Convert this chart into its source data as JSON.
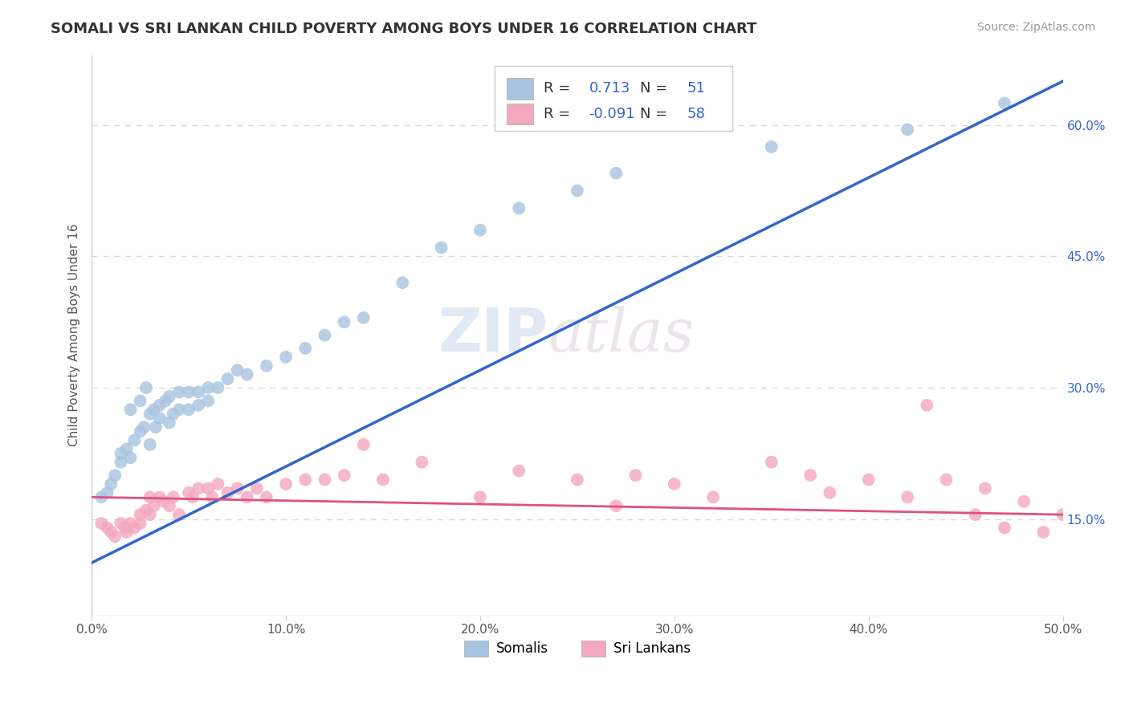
{
  "title": "SOMALI VS SRI LANKAN CHILD POVERTY AMONG BOYS UNDER 16 CORRELATION CHART",
  "source": "Source: ZipAtlas.com",
  "ylabel": "Child Poverty Among Boys Under 16",
  "xlim": [
    0.0,
    0.5
  ],
  "ylim": [
    0.04,
    0.68
  ],
  "x_ticks": [
    0.0,
    0.1,
    0.2,
    0.3,
    0.4,
    0.5
  ],
  "x_tick_labels": [
    "0.0%",
    "10.0%",
    "20.0%",
    "30.0%",
    "40.0%",
    "50.0%"
  ],
  "y_ticks": [
    0.15,
    0.3,
    0.45,
    0.6
  ],
  "y_tick_labels": [
    "15.0%",
    "30.0%",
    "45.0%",
    "60.0%"
  ],
  "background_color": "#ffffff",
  "grid_color": "#d8d8d8",
  "watermark_zip": "ZIP",
  "watermark_atlas": "atlas",
  "legend_R1": "0.713",
  "legend_N1": "51",
  "legend_R2": "-0.091",
  "legend_N2": "58",
  "somali_color": "#a8c4e0",
  "srilanka_color": "#f4a8c0",
  "line_blue": "#3366cc",
  "line_pink": "#e05080",
  "somali_x": [
    0.005,
    0.008,
    0.01,
    0.012,
    0.015,
    0.015,
    0.018,
    0.02,
    0.02,
    0.022,
    0.025,
    0.025,
    0.027,
    0.028,
    0.03,
    0.03,
    0.032,
    0.033,
    0.035,
    0.035,
    0.038,
    0.04,
    0.04,
    0.042,
    0.045,
    0.045,
    0.05,
    0.05,
    0.055,
    0.055,
    0.06,
    0.06,
    0.065,
    0.07,
    0.075,
    0.08,
    0.09,
    0.1,
    0.11,
    0.12,
    0.13,
    0.14,
    0.16,
    0.18,
    0.2,
    0.22,
    0.25,
    0.27,
    0.35,
    0.42,
    0.47
  ],
  "somali_y": [
    0.175,
    0.18,
    0.19,
    0.2,
    0.215,
    0.225,
    0.23,
    0.22,
    0.275,
    0.24,
    0.25,
    0.285,
    0.255,
    0.3,
    0.27,
    0.235,
    0.275,
    0.255,
    0.28,
    0.265,
    0.285,
    0.26,
    0.29,
    0.27,
    0.275,
    0.295,
    0.275,
    0.295,
    0.28,
    0.295,
    0.285,
    0.3,
    0.3,
    0.31,
    0.32,
    0.315,
    0.325,
    0.335,
    0.345,
    0.36,
    0.375,
    0.38,
    0.42,
    0.46,
    0.48,
    0.505,
    0.525,
    0.545,
    0.575,
    0.595,
    0.625
  ],
  "srilanka_x": [
    0.005,
    0.008,
    0.01,
    0.012,
    0.015,
    0.017,
    0.018,
    0.02,
    0.022,
    0.025,
    0.025,
    0.028,
    0.03,
    0.03,
    0.032,
    0.035,
    0.037,
    0.04,
    0.042,
    0.045,
    0.05,
    0.052,
    0.055,
    0.06,
    0.062,
    0.065,
    0.07,
    0.075,
    0.08,
    0.085,
    0.09,
    0.1,
    0.11,
    0.12,
    0.13,
    0.14,
    0.15,
    0.17,
    0.2,
    0.22,
    0.25,
    0.27,
    0.28,
    0.3,
    0.32,
    0.35,
    0.37,
    0.38,
    0.4,
    0.42,
    0.43,
    0.44,
    0.455,
    0.46,
    0.47,
    0.48,
    0.49,
    0.5
  ],
  "srilanka_y": [
    0.145,
    0.14,
    0.135,
    0.13,
    0.145,
    0.14,
    0.135,
    0.145,
    0.14,
    0.155,
    0.145,
    0.16,
    0.155,
    0.175,
    0.165,
    0.175,
    0.17,
    0.165,
    0.175,
    0.155,
    0.18,
    0.175,
    0.185,
    0.185,
    0.175,
    0.19,
    0.18,
    0.185,
    0.175,
    0.185,
    0.175,
    0.19,
    0.195,
    0.195,
    0.2,
    0.235,
    0.195,
    0.215,
    0.175,
    0.205,
    0.195,
    0.165,
    0.2,
    0.19,
    0.175,
    0.215,
    0.2,
    0.18,
    0.195,
    0.175,
    0.28,
    0.195,
    0.155,
    0.185,
    0.14,
    0.17,
    0.135,
    0.155
  ]
}
